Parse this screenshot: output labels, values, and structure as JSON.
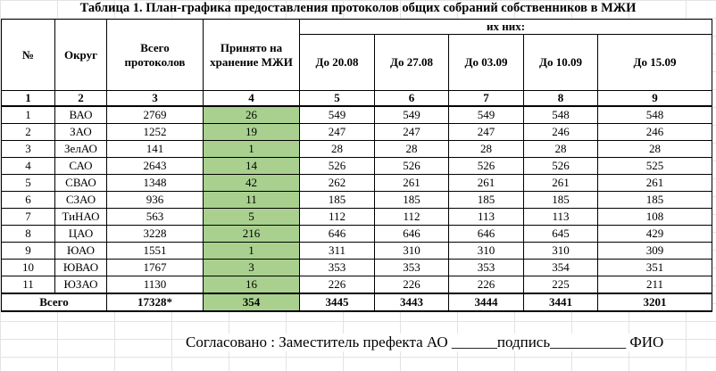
{
  "title": "Таблица 1.  План-графика предоставления протоколов общих собраний собственников в МЖИ",
  "headers": {
    "num": "№",
    "district": "Округ",
    "total": "Всего протоколов",
    "accepted": "Принято на хранение МЖИ",
    "of_them": "их них:",
    "dates": [
      "До 20.08",
      "До 27.08",
      "До 03.09",
      "До 10.09",
      "До 15.09"
    ]
  },
  "column_numbers": [
    "1",
    "2",
    "3",
    "4",
    "5",
    "6",
    "7",
    "8",
    "9"
  ],
  "rows": [
    {
      "n": "1",
      "district": "ВАО",
      "total": "2769",
      "accepted": "26",
      "d1": "549",
      "d2": "549",
      "d3": "549",
      "d4": "548",
      "d5": "548"
    },
    {
      "n": "2",
      "district": "ЗАО",
      "total": "1252",
      "accepted": "19",
      "d1": "247",
      "d2": "247",
      "d3": "247",
      "d4": "246",
      "d5": "246"
    },
    {
      "n": "3",
      "district": "ЗелАО",
      "total": "141",
      "accepted": "1",
      "d1": "28",
      "d2": "28",
      "d3": "28",
      "d4": "28",
      "d5": "28"
    },
    {
      "n": "4",
      "district": "САО",
      "total": "2643",
      "accepted": "14",
      "d1": "526",
      "d2": "526",
      "d3": "526",
      "d4": "526",
      "d5": "525"
    },
    {
      "n": "5",
      "district": "СВАО",
      "total": "1348",
      "accepted": "42",
      "d1": "262",
      "d2": "261",
      "d3": "261",
      "d4": "261",
      "d5": "261"
    },
    {
      "n": "6",
      "district": "СЗАО",
      "total": "936",
      "accepted": "11",
      "d1": "185",
      "d2": "185",
      "d3": "185",
      "d4": "185",
      "d5": "185"
    },
    {
      "n": "7",
      "district": "ТиНАО",
      "total": "563",
      "accepted": "5",
      "d1": "112",
      "d2": "112",
      "d3": "113",
      "d4": "113",
      "d5": "108"
    },
    {
      "n": "8",
      "district": "ЦАО",
      "total": "3228",
      "accepted": "216",
      "d1": "646",
      "d2": "646",
      "d3": "646",
      "d4": "645",
      "d5": "429"
    },
    {
      "n": "9",
      "district": "ЮАО",
      "total": "1551",
      "accepted": "1",
      "d1": "311",
      "d2": "310",
      "d3": "310",
      "d4": "310",
      "d5": "309"
    },
    {
      "n": "10",
      "district": "ЮВАО",
      "total": "1767",
      "accepted": "3",
      "d1": "353",
      "d2": "353",
      "d3": "353",
      "d4": "354",
      "d5": "351"
    },
    {
      "n": "11",
      "district": "ЮЗАО",
      "total": "1130",
      "accepted": "16",
      "d1": "226",
      "d2": "226",
      "d3": "226",
      "d4": "225",
      "d5": "211"
    }
  ],
  "totals": {
    "label": "Всего",
    "total": "17328*",
    "accepted": "354",
    "d1": "3445",
    "d2": "3443",
    "d3": "3444",
    "d4": "3441",
    "d5": "3201"
  },
  "footer": "Согласовано : Заместитель префекта АО ______подпись__________ ФИО",
  "colors": {
    "accepted_fill": "#a9d08e",
    "gridline": "#e3e3e3"
  }
}
